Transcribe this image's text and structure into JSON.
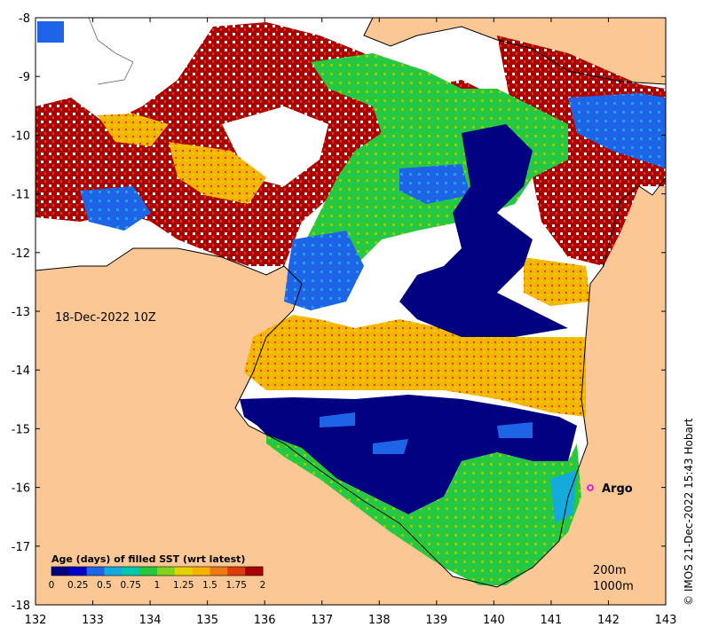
{
  "map": {
    "date_label": "18-Dec-2022 10Z",
    "argo_label": "Argo",
    "contour_labels": [
      "200m",
      "1000m"
    ],
    "credit": "© IMOS 21-Dec-2022 15:43 Hobart",
    "x_ticks": [
      "132",
      "133",
      "134",
      "135",
      "136",
      "137",
      "138",
      "139",
      "140",
      "141",
      "142",
      "143"
    ],
    "y_ticks": [
      "-8",
      "-9",
      "-10",
      "-11",
      "-12",
      "-13",
      "-14",
      "-15",
      "-16",
      "-17",
      "-18"
    ],
    "colors": {
      "land": "#fbc895",
      "no_data": "#ffffff",
      "argo_marker": "#e000e0"
    }
  },
  "legend": {
    "title": "Age (days) of filled SST (wrt latest)",
    "ticks": [
      "0",
      "0.25",
      "0.5",
      "0.75",
      "1",
      "1.25",
      "1.5",
      "1.75",
      "2"
    ],
    "colors": [
      "#000080",
      "#0000c8",
      "#1e64e6",
      "#14aadc",
      "#00c8aa",
      "#28c83c",
      "#82d21e",
      "#e6d200",
      "#f5b400",
      "#f07814",
      "#dc3c0a",
      "#aa0000"
    ]
  }
}
